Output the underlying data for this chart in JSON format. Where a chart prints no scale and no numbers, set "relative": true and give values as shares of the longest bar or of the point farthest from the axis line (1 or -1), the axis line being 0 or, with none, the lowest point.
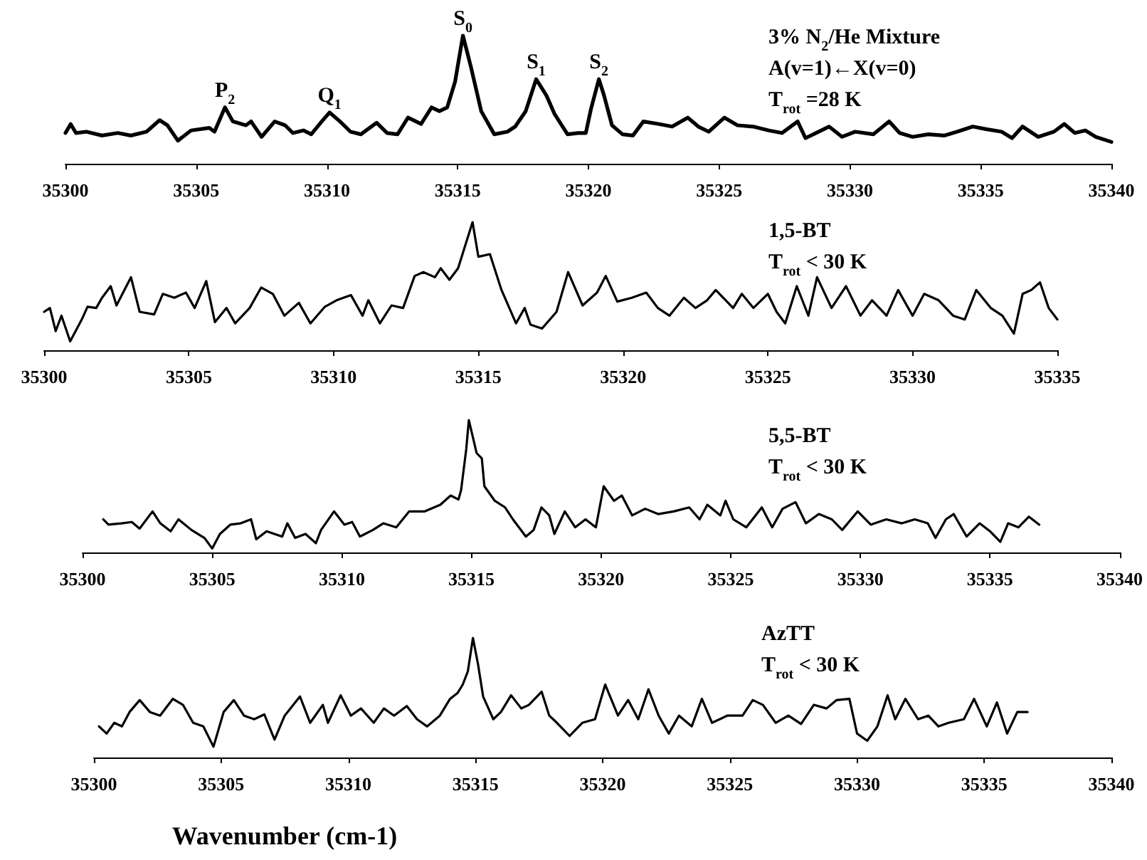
{
  "chart_data": [
    {
      "type": "line",
      "relative": true,
      "color": "#000000",
      "xlim": [
        35300,
        35340
      ],
      "xticks": [
        35300,
        35305,
        35310,
        35315,
        35320,
        35325,
        35330,
        35335,
        35340
      ],
      "annotations": [
        "3% N$_{2}$/He Mixture",
        "A(v=1)←X(v=0)",
        "T$_{rot}$ =28 K",
        {
          "text": "P$_{2}$",
          "x": 35306.1,
          "y": 0.44
        },
        {
          "text": "Q$_{1}$",
          "x": 35310.1,
          "y": 0.4
        },
        {
          "text": "S$_{0}$",
          "x": 35315.2,
          "y": 1
        },
        {
          "text": "S$_{1}$",
          "x": 35318.0,
          "y": 0.66
        },
        {
          "text": "S$_{2}$",
          "x": 35320.4,
          "y": 0.66
        }
      ],
      "x": [
        35300,
        35300.2,
        35300.4,
        35300.8,
        35301.4,
        35302.0,
        35302.5,
        35303.1,
        35303.6,
        35303.9,
        35304.3,
        35304.8,
        35305.5,
        35305.7,
        35306.1,
        35306.4,
        35306.9,
        35307.1,
        35307.5,
        35308.0,
        35308.4,
        35308.7,
        35309.1,
        35309.4,
        35309.8,
        35310.1,
        35310.5,
        35310.9,
        35311.3,
        35311.9,
        35312.3,
        35312.7,
        35313.1,
        35313.6,
        35314.0,
        35314.3,
        35314.6,
        35314.9,
        35315.2,
        35315.5,
        35315.9,
        35316.4,
        35316.9,
        35317.2,
        35317.6,
        35318.0,
        35318.4,
        35318.7,
        35319.2,
        35319.6,
        35319.9,
        35320.1,
        35320.4,
        35320.6,
        35320.9,
        35321.3,
        35321.7,
        35322.1,
        35322.7,
        35323.2,
        35323.8,
        35324.2,
        35324.6,
        35325.2,
        35325.7,
        35326.3,
        35326.9,
        35327.4,
        35328.0,
        35328.3,
        35328.7,
        35329.2,
        35329.7,
        35330.2,
        35330.9,
        35331.5,
        35331.9,
        35332.4,
        35333.0,
        35333.6,
        35334.1,
        35334.7,
        35335.2,
        35335.8,
        35336.2,
        35336.6,
        35337.2,
        35337.8,
        35338.2,
        35338.6,
        35339.0,
        35339.4,
        35340.0
      ],
      "values": [
        0.24,
        0.31,
        0.24,
        0.25,
        0.22,
        0.24,
        0.22,
        0.25,
        0.34,
        0.3,
        0.18,
        0.26,
        0.28,
        0.25,
        0.44,
        0.33,
        0.3,
        0.33,
        0.21,
        0.33,
        0.3,
        0.24,
        0.26,
        0.23,
        0.33,
        0.4,
        0.33,
        0.25,
        0.23,
        0.32,
        0.24,
        0.23,
        0.36,
        0.31,
        0.44,
        0.41,
        0.44,
        0.64,
        1,
        0.76,
        0.41,
        0.23,
        0.25,
        0.29,
        0.41,
        0.66,
        0.53,
        0.39,
        0.23,
        0.24,
        0.24,
        0.43,
        0.66,
        0.53,
        0.3,
        0.23,
        0.22,
        0.33,
        0.31,
        0.29,
        0.36,
        0.29,
        0.25,
        0.36,
        0.3,
        0.29,
        0.26,
        0.24,
        0.33,
        0.2,
        0.24,
        0.29,
        0.21,
        0.25,
        0.23,
        0.33,
        0.24,
        0.21,
        0.23,
        0.22,
        0.25,
        0.29,
        0.27,
        0.25,
        0.2,
        0.29,
        0.21,
        0.25,
        0.31,
        0.24,
        0.26,
        0.21,
        0.17
      ]
    },
    {
      "type": "line",
      "relative": true,
      "color": "#000000",
      "xlim": [
        35300,
        35335
      ],
      "xticks": [
        35300,
        35305,
        35310,
        35315,
        35320,
        35325,
        35330,
        35335
      ],
      "annotations": [
        "1,5-BT",
        "T$_{rot}$ < 30 K"
      ],
      "x": [
        35300.0,
        35300.2,
        35300.4,
        35300.6,
        35300.9,
        35301.3,
        35301.5,
        35301.8,
        35302.0,
        35302.3,
        35302.5,
        35303.0,
        35303.3,
        35303.8,
        35304.1,
        35304.5,
        35304.9,
        35305.2,
        35305.6,
        35305.9,
        35306.3,
        35306.6,
        35307.1,
        35307.5,
        35307.9,
        35308.3,
        35308.8,
        35309.2,
        35309.7,
        35310.1,
        35310.6,
        35311.0,
        35311.2,
        35311.6,
        35312.0,
        35312.4,
        35312.8,
        35313.1,
        35313.5,
        35313.7,
        35314.0,
        35314.3,
        35314.8,
        35315.0,
        35315.4,
        35315.8,
        35316.3,
        35316.6,
        35316.8,
        35317.2,
        35317.7,
        35318.1,
        35318.6,
        35319.1,
        35319.4,
        35319.8,
        35320.3,
        35320.8,
        35321.2,
        35321.6,
        35322.1,
        35322.5,
        35322.9,
        35323.2,
        35323.8,
        35324.1,
        35324.5,
        35325.0,
        35325.3,
        35325.6,
        35326.0,
        35326.4,
        35326.7,
        35327.2,
        35327.7,
        35328.2,
        35328.6,
        35329.1,
        35329.5,
        35330.0,
        35330.4,
        35330.9,
        35331.4,
        35331.8,
        35332.2,
        35332.7,
        35333.1,
        35333.5,
        35333.8,
        35334.1,
        35334.4,
        35334.7,
        35335.0
      ],
      "values": [
        0.3,
        0.33,
        0.15,
        0.27,
        0.07,
        0.24,
        0.34,
        0.33,
        0.41,
        0.5,
        0.35,
        0.57,
        0.3,
        0.28,
        0.44,
        0.41,
        0.45,
        0.33,
        0.54,
        0.22,
        0.33,
        0.21,
        0.33,
        0.49,
        0.44,
        0.27,
        0.37,
        0.21,
        0.34,
        0.39,
        0.43,
        0.27,
        0.39,
        0.21,
        0.35,
        0.33,
        0.58,
        0.61,
        0.57,
        0.64,
        0.55,
        0.64,
        1,
        0.73,
        0.75,
        0.47,
        0.21,
        0.33,
        0.2,
        0.17,
        0.3,
        0.61,
        0.35,
        0.45,
        0.58,
        0.38,
        0.41,
        0.45,
        0.33,
        0.27,
        0.41,
        0.33,
        0.39,
        0.47,
        0.33,
        0.44,
        0.33,
        0.44,
        0.3,
        0.21,
        0.5,
        0.27,
        0.57,
        0.33,
        0.5,
        0.27,
        0.39,
        0.27,
        0.47,
        0.27,
        0.44,
        0.39,
        0.27,
        0.24,
        0.47,
        0.33,
        0.27,
        0.13,
        0.44,
        0.47,
        0.53,
        0.33,
        0.24
      ]
    },
    {
      "type": "line",
      "relative": true,
      "color": "#000000",
      "xlim": [
        35300,
        35340
      ],
      "xticks": [
        35300,
        35305,
        35310,
        35315,
        35320,
        35325,
        35330,
        35335,
        35340
      ],
      "annotations": [
        "5,5-BT",
        "T$_{rot}$ < 30 K"
      ],
      "x": [
        35300.8,
        35301.0,
        35301.5,
        35301.9,
        35302.2,
        35302.7,
        35303.0,
        35303.4,
        35303.7,
        35304.2,
        35304.7,
        35305.0,
        35305.3,
        35305.7,
        35306.1,
        35306.5,
        35306.7,
        35307.1,
        35307.7,
        35307.9,
        35308.2,
        35308.6,
        35309.0,
        35309.2,
        35309.7,
        35310.1,
        35310.4,
        35310.7,
        35311.2,
        35311.6,
        35312.1,
        35312.6,
        35313.2,
        35313.8,
        35314.2,
        35314.5,
        35314.6,
        35314.8,
        35314.9,
        35315.2,
        35315.4,
        35315.5,
        35315.9,
        35316.3,
        35316.6,
        35317.1,
        35317.4,
        35317.7,
        35318.0,
        35318.2,
        35318.6,
        35319.0,
        35319.4,
        35319.8,
        35320.1,
        35320.5,
        35320.8,
        35321.2,
        35321.7,
        35322.2,
        35322.8,
        35323.4,
        35323.8,
        35324.1,
        35324.6,
        35324.8,
        35325.1,
        35325.6,
        35326.2,
        35326.6,
        35327.0,
        35327.5,
        35327.9,
        35328.4,
        35328.9,
        35329.3,
        35329.9,
        35330.4,
        35331.0,
        35331.6,
        35332.1,
        35332.6,
        35332.9,
        35333.3,
        35333.6,
        35334.1,
        35334.6,
        35335.0,
        35335.4,
        35335.7,
        35336.1,
        35336.5,
        35336.9
      ],
      "values": [
        0.25,
        0.21,
        0.22,
        0.23,
        0.18,
        0.31,
        0.22,
        0.16,
        0.25,
        0.17,
        0.11,
        0.03,
        0.14,
        0.21,
        0.22,
        0.25,
        0.1,
        0.16,
        0.12,
        0.22,
        0.11,
        0.14,
        0.07,
        0.17,
        0.31,
        0.21,
        0.23,
        0.12,
        0.17,
        0.22,
        0.19,
        0.31,
        0.31,
        0.36,
        0.43,
        0.4,
        0.47,
        0.78,
        1,
        0.75,
        0.71,
        0.5,
        0.39,
        0.34,
        0.25,
        0.12,
        0.17,
        0.34,
        0.28,
        0.14,
        0.31,
        0.19,
        0.25,
        0.19,
        0.5,
        0.39,
        0.43,
        0.28,
        0.33,
        0.29,
        0.31,
        0.34,
        0.25,
        0.36,
        0.28,
        0.39,
        0.25,
        0.19,
        0.34,
        0.19,
        0.33,
        0.38,
        0.22,
        0.29,
        0.25,
        0.17,
        0.31,
        0.21,
        0.25,
        0.22,
        0.25,
        0.22,
        0.11,
        0.25,
        0.29,
        0.12,
        0.22,
        0.16,
        0.08,
        0.22,
        0.19,
        0.27,
        0.21
      ]
    },
    {
      "type": "line",
      "relative": true,
      "color": "#000000",
      "xlim": [
        35300,
        35340
      ],
      "xticks": [
        35300,
        35305,
        35310,
        35315,
        35320,
        35325,
        35330,
        35335,
        35340
      ],
      "xlabel": "Wavenumber (cm-1)",
      "annotations": [
        "AzTT",
        "T$_{rot}$ < 30 K"
      ],
      "x": [
        35300.2,
        35300.5,
        35300.8,
        35301.1,
        35301.4,
        35301.8,
        35302.2,
        35302.6,
        35303.1,
        35303.5,
        35303.9,
        35304.3,
        35304.7,
        35305.1,
        35305.5,
        35305.9,
        35306.3,
        35306.7,
        35307.1,
        35307.5,
        35308.1,
        35308.5,
        35309.0,
        35309.2,
        35309.7,
        35310.1,
        35310.5,
        35311.0,
        35311.4,
        35311.8,
        35312.3,
        35312.7,
        35313.1,
        35313.6,
        35314.0,
        35314.3,
        35314.5,
        35314.7,
        35314.9,
        35315.1,
        35315.3,
        35315.7,
        35316.0,
        35316.4,
        35316.8,
        35317.1,
        35317.6,
        35317.9,
        35318.2,
        35318.7,
        35319.2,
        35319.7,
        35320.1,
        35320.6,
        35321.0,
        35321.4,
        35321.8,
        35322.2,
        35322.6,
        35323.0,
        35323.5,
        35323.9,
        35324.3,
        35324.9,
        35325.5,
        35325.9,
        35326.3,
        35326.8,
        35327.3,
        35327.8,
        35328.3,
        35328.8,
        35329.2,
        35329.7,
        35330.0,
        35330.4,
        35330.8,
        35331.2,
        35331.5,
        35331.9,
        35332.4,
        35332.8,
        35333.2,
        35333.6,
        35334.2,
        35334.6,
        35335.1,
        35335.5,
        35335.9,
        35336.3,
        35336.7
      ],
      "values": [
        0.26,
        0.2,
        0.29,
        0.26,
        0.38,
        0.48,
        0.38,
        0.35,
        0.49,
        0.44,
        0.29,
        0.26,
        0.09,
        0.38,
        0.48,
        0.35,
        0.32,
        0.36,
        0.15,
        0.35,
        0.51,
        0.29,
        0.44,
        0.29,
        0.52,
        0.35,
        0.41,
        0.29,
        0.41,
        0.35,
        0.43,
        0.32,
        0.26,
        0.35,
        0.49,
        0.54,
        0.61,
        0.72,
        1,
        0.78,
        0.51,
        0.32,
        0.38,
        0.52,
        0.41,
        0.44,
        0.55,
        0.35,
        0.29,
        0.18,
        0.29,
        0.32,
        0.61,
        0.35,
        0.48,
        0.32,
        0.57,
        0.35,
        0.2,
        0.35,
        0.26,
        0.49,
        0.29,
        0.35,
        0.35,
        0.48,
        0.44,
        0.29,
        0.35,
        0.28,
        0.44,
        0.41,
        0.48,
        0.49,
        0.2,
        0.14,
        0.26,
        0.52,
        0.32,
        0.49,
        0.32,
        0.35,
        0.26,
        0.29,
        0.32,
        0.49,
        0.26,
        0.46,
        0.2,
        0.38,
        0.38
      ]
    }
  ]
}
